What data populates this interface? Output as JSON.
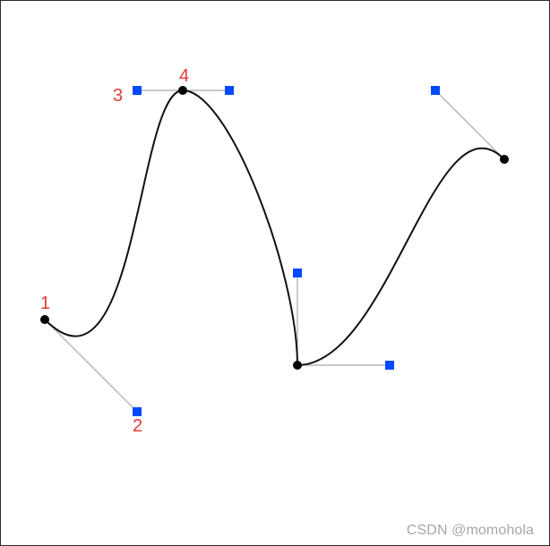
{
  "diagram": {
    "kind": "bezier-curve-editor",
    "curve_color": "#111111",
    "handle_line_color": "#a8a8a8",
    "handle_color": "#0049ff",
    "anchor_color": "#000000",
    "label_color": "#e53935",
    "labels": {
      "p1": "1",
      "p2": "2",
      "p3": "3",
      "p4": "4"
    }
  },
  "watermark": "CSDN @momohola"
}
